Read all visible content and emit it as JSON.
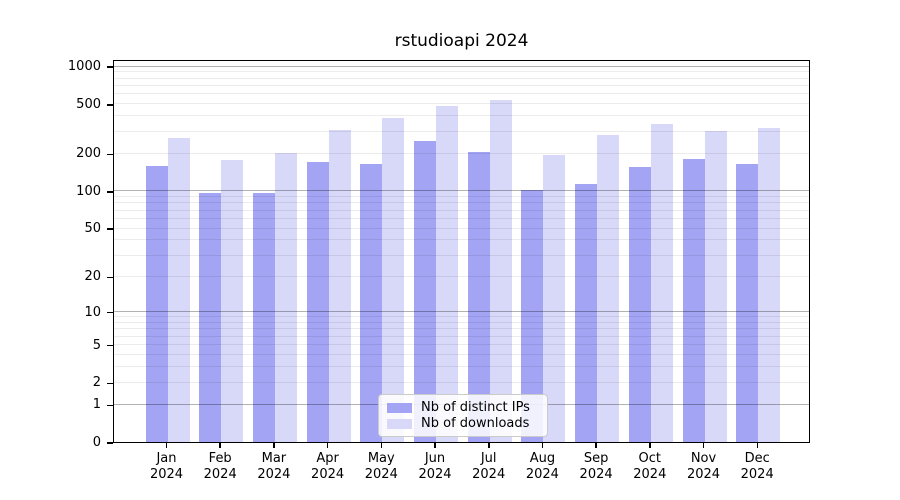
{
  "chart_data": {
    "type": "bar",
    "title": "rstudioapi 2024",
    "year_label": "2024",
    "categories": [
      "Jan",
      "Feb",
      "Mar",
      "Apr",
      "May",
      "Jun",
      "Jul",
      "Aug",
      "Sep",
      "Oct",
      "Nov",
      "Dec"
    ],
    "series": [
      {
        "name": "Nb of distinct IPs",
        "color": "#a4a4f4",
        "values": [
          160,
          96,
          97,
          172,
          165,
          250,
          205,
          101,
          113,
          155,
          180,
          165
        ]
      },
      {
        "name": "Nb of downloads",
        "color": "#d8d8f8",
        "values": [
          265,
          176,
          200,
          310,
          388,
          480,
          538,
          193,
          280,
          343,
          302,
          318
        ]
      }
    ],
    "y_scale": "log1p",
    "y_ticks": [
      0,
      1,
      2,
      5,
      10,
      20,
      50,
      100,
      200,
      500,
      1000
    ],
    "ylim": [
      0,
      1000
    ],
    "grid": "both",
    "legend_position": "lower-center"
  }
}
